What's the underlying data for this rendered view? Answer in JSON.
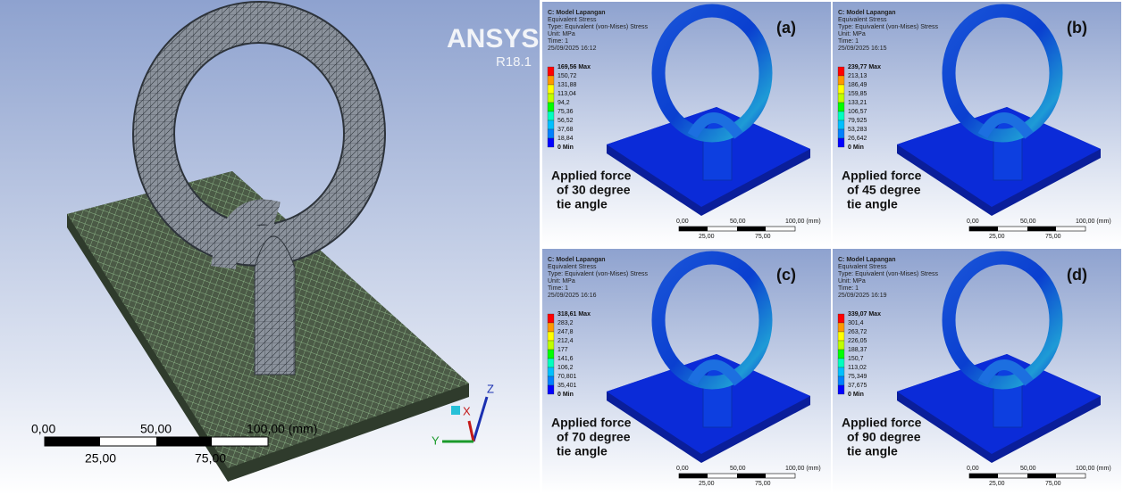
{
  "left": {
    "logo": "ANSYS",
    "version": "R18.1",
    "scale": [
      "0,00",
      "50,00",
      "100,00 (mm)",
      "25,00",
      "75,00"
    ],
    "axes": [
      "Z",
      "X",
      "Y"
    ]
  },
  "panels": [
    {
      "header": [
        "C: Model Lapangan",
        "Equivalent Stress",
        "Type: Equivalent (von-Mises) Stress",
        "Unit: MPa",
        "Time: 1",
        "25/09/2025 16:12"
      ],
      "legend": [
        "169,56 Max",
        "150,72",
        "131,88",
        "113,04",
        "94,2",
        "75,36",
        "56,52",
        "37,68",
        "18,84",
        "0 Min"
      ],
      "label": "(a)",
      "caption": [
        "Applied force",
        "of 30 degree",
        "tie angle"
      ],
      "scale": [
        "0,00",
        "50,00",
        "100,00 (mm)",
        "25,00",
        "75,00"
      ]
    },
    {
      "header": [
        "C: Model Lapangan",
        "Equivalent Stress",
        "Type: Equivalent (von-Mises) Stress",
        "Unit: MPa",
        "Time: 1",
        "25/09/2025 16:15"
      ],
      "legend": [
        "239,77 Max",
        "213,13",
        "186,49",
        "159,85",
        "133,21",
        "106,57",
        "79,925",
        "53,283",
        "26,642",
        "0 Min"
      ],
      "label": "(b)",
      "caption": [
        "Applied force",
        "of 45 degree",
        "tie angle"
      ],
      "scale": [
        "0,00",
        "50,00",
        "100,00 (mm)",
        "25,00",
        "75,00"
      ]
    },
    {
      "header": [
        "C: Model Lapangan",
        "Equivalent Stress",
        "Type: Equivalent (von-Mises) Stress",
        "Unit: MPa",
        "Time: 1",
        "25/09/2025 16:16"
      ],
      "legend": [
        "318,61 Max",
        "283,2",
        "247,8",
        "212,4",
        "177",
        "141,6",
        "106,2",
        "70,801",
        "35,401",
        "0 Min"
      ],
      "label": "(c)",
      "caption": [
        "Applied force",
        "of 70 degree",
        "tie angle"
      ],
      "scale": [
        "0,00",
        "50,00",
        "100,00 (mm)",
        "25,00",
        "75,00"
      ]
    },
    {
      "header": [
        "C: Model Lapangan",
        "Equivalent Stress",
        "Type: Equivalent (von-Mises) Stress",
        "Unit: MPa",
        "Time: 1",
        "25/09/2025 16:19"
      ],
      "legend": [
        "339,07 Max",
        "301,4",
        "263,72",
        "226,05",
        "188,37",
        "150,7",
        "113,02",
        "75,349",
        "37,675",
        "0 Min"
      ],
      "label": "(d)",
      "caption": [
        "Applied force",
        "of 90 degree",
        "tie angle"
      ],
      "scale": [
        "0,00",
        "50,00",
        "100,00 (mm)",
        "25,00",
        "75,00"
      ]
    }
  ]
}
